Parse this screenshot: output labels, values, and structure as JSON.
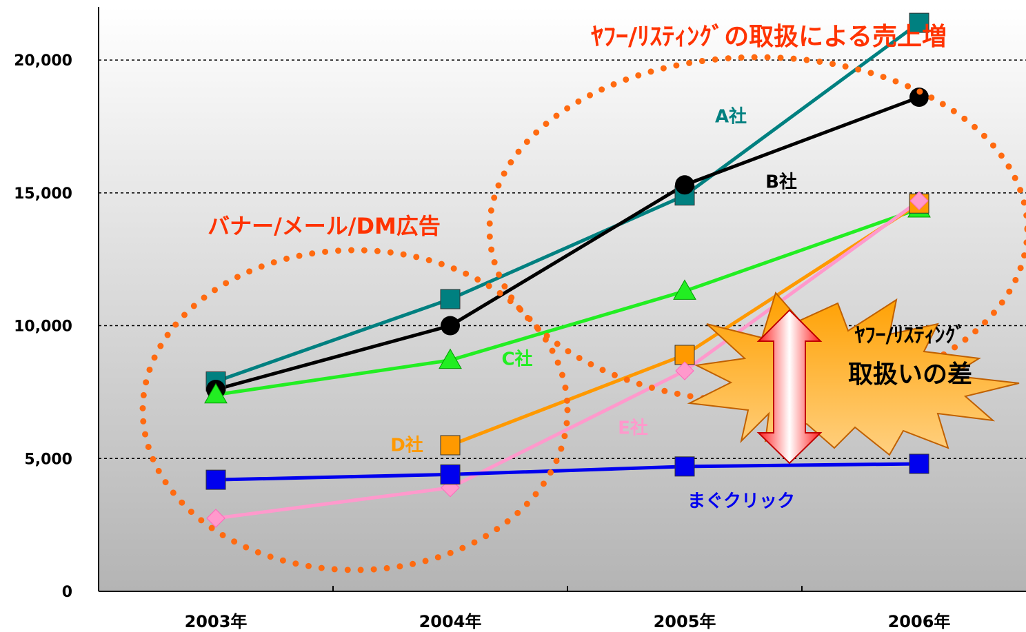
{
  "chart_data": {
    "type": "line",
    "categories": [
      "2003年",
      "2004年",
      "2005年",
      "2006年"
    ],
    "series": [
      {
        "name": "A社",
        "color": "#008080",
        "marker": "square",
        "values": [
          7900,
          11000,
          14900,
          21400
        ]
      },
      {
        "name": "B社",
        "color": "#000000",
        "marker": "circle",
        "values": [
          7600,
          10000,
          15300,
          18600
        ]
      },
      {
        "name": "C社",
        "color": "#22ee22",
        "marker": "triangle",
        "values": [
          7400,
          8700,
          11300,
          14400
        ]
      },
      {
        "name": "D社",
        "color": "#ff9900",
        "marker": "square",
        "values": [
          null,
          5500,
          8900,
          14600
        ]
      },
      {
        "name": "E社",
        "color": "#ff99cc",
        "marker": "diamond",
        "values": [
          2750,
          3900,
          8300,
          14700
        ]
      },
      {
        "name": "まぐクリック",
        "color": "#0000ee",
        "marker": "square",
        "values": [
          4200,
          4400,
          4700,
          4800
        ]
      }
    ],
    "ylim": [
      0,
      22000
    ],
    "yticks": [
      0,
      {
        "value": 5000,
        "label": "5,000"
      },
      {
        "value": 10000,
        "label": "10,000"
      },
      {
        "value": 15000,
        "label": "15,000"
      },
      {
        "value": 20000,
        "label": "20,000"
      }
    ],
    "grid": true,
    "annotations": [
      "ﾔﾌｰ/ﾘｽﾃｨﾝｸﾞの取扱による売上増",
      "バナー/メール/DM広告",
      "ﾔﾌｰ/ﾘｽﾃｨﾝｸﾞ",
      "取扱いの差"
    ]
  }
}
